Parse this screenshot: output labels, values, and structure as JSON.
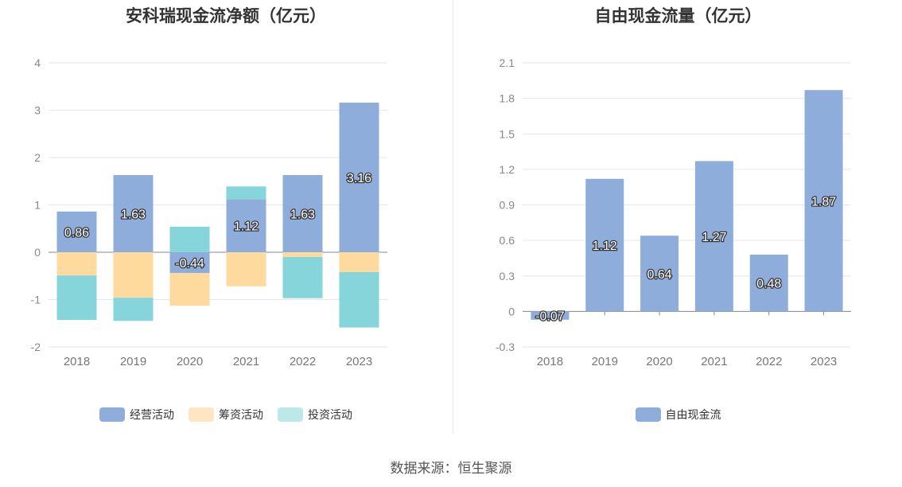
{
  "chart_data": [
    {
      "type": "bar",
      "stacked": true,
      "title": "安科瑞现金流净额（亿元）",
      "categories": [
        "2018",
        "2019",
        "2020",
        "2021",
        "2022",
        "2023"
      ],
      "ylim": [
        -2,
        4
      ],
      "yticks": [
        "4",
        "3",
        "2",
        "1",
        "0",
        "-1",
        "-2"
      ],
      "ytick_values": [
        4,
        3,
        2,
        1,
        0,
        -1,
        -2
      ],
      "grid": true,
      "legend_position": "bottom",
      "series": [
        {
          "name": "经营活动",
          "color": "#8EADDB",
          "values": [
            0.86,
            1.63,
            -0.44,
            1.12,
            1.63,
            3.16
          ],
          "labels": [
            "0.86",
            "1.63",
            "-0.44",
            "1.12",
            "1.63",
            "3.16"
          ]
        },
        {
          "name": "筹资活动",
          "color": "#FFDA9E",
          "values": [
            -0.49,
            -0.96,
            -0.69,
            -0.72,
            -0.1,
            -0.42
          ]
        },
        {
          "name": "投资活动",
          "color": "#85D5DA",
          "values": [
            -0.94,
            -0.49,
            0.54,
            0.27,
            -0.87,
            -1.17
          ]
        }
      ]
    },
    {
      "type": "bar",
      "title": "自由现金流量（亿元）",
      "categories": [
        "2018",
        "2019",
        "2020",
        "2021",
        "2022",
        "2023"
      ],
      "ylim": [
        -0.3,
        2.1
      ],
      "yticks": [
        "2.1",
        "1.8",
        "1.5",
        "1.2",
        "0.9",
        "0.6",
        "0.3",
        "0",
        "-0.3"
      ],
      "ytick_values": [
        2.1,
        1.8,
        1.5,
        1.2,
        0.9,
        0.6,
        0.3,
        0,
        -0.3
      ],
      "grid": true,
      "legend_position": "bottom",
      "series": [
        {
          "name": "自由现金流",
          "color": "#8EADDB",
          "values": [
            -0.07,
            1.12,
            0.64,
            1.27,
            0.48,
            1.87
          ],
          "labels": [
            "-0.07",
            "1.12",
            "0.64",
            "1.27",
            "0.48",
            "1.87"
          ]
        }
      ]
    }
  ],
  "legend_left": [
    {
      "name": "经营活动",
      "color": "#8EADDB"
    },
    {
      "name": "筹资活动",
      "color": "#FFE6C2"
    },
    {
      "name": "投资活动",
      "color": "#BDE8EA"
    }
  ],
  "legend_right": [
    {
      "name": "自由现金流",
      "color": "#8EADDB"
    }
  ],
  "footer": "数据来源：恒生聚源"
}
